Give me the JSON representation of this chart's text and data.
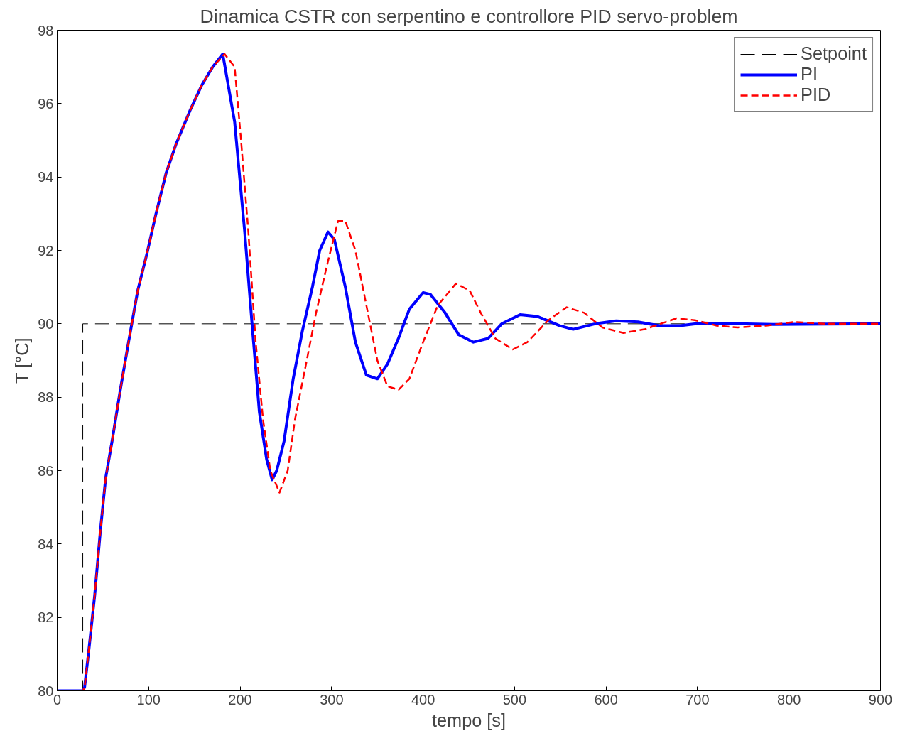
{
  "chart_data": {
    "type": "line",
    "title": "Dinamica CSTR con serpentino e controllore PID servo-problem",
    "xlabel": "tempo [s]",
    "ylabel": "T [°C]",
    "xlim": [
      0,
      900
    ],
    "ylim": [
      80,
      98
    ],
    "xticks": [
      0,
      100,
      200,
      300,
      400,
      500,
      600,
      700,
      800,
      900
    ],
    "yticks": [
      80,
      82,
      84,
      86,
      88,
      90,
      92,
      94,
      96,
      98
    ],
    "grid": false,
    "legend": "top right",
    "marker": "none",
    "series": [
      {
        "name": "Setpoint",
        "color": "#000000",
        "line_style": "dashed",
        "x": [
          0,
          28,
          28,
          900
        ],
        "values": [
          80,
          80,
          90,
          90
        ]
      },
      {
        "name": "PI",
        "color": "#0000ff",
        "line_style": "solid",
        "x": [
          0,
          28,
          30,
          35,
          41,
          47,
          53,
          60,
          69,
          78,
          88,
          98,
          108,
          119,
          130,
          145,
          158,
          170,
          181,
          194,
          205,
          213,
          221,
          229,
          235,
          240,
          248,
          258,
          268,
          279,
          287,
          296,
          303,
          315,
          326,
          338,
          350,
          361,
          373,
          385,
          400,
          408,
          424,
          439,
          455,
          471,
          486,
          506,
          525,
          549,
          564,
          588,
          611,
          635,
          658,
          681,
          705,
          744,
          783,
          900
        ],
        "values": [
          80,
          80,
          80.1,
          81.2,
          82.6,
          84.3,
          85.8,
          86.8,
          88.2,
          89.5,
          90.9,
          91.9,
          93.0,
          94.1,
          94.9,
          95.8,
          96.5,
          97.0,
          97.35,
          95.5,
          92.5,
          90.0,
          87.6,
          86.3,
          85.75,
          86.0,
          86.8,
          88.5,
          89.8,
          91.0,
          92.0,
          92.5,
          92.3,
          91.0,
          89.5,
          88.6,
          88.5,
          88.9,
          89.6,
          90.4,
          90.85,
          90.8,
          90.3,
          89.7,
          89.5,
          89.6,
          90.0,
          90.25,
          90.2,
          89.95,
          89.85,
          90.0,
          90.08,
          90.05,
          89.95,
          89.95,
          90.02,
          90.0,
          89.98,
          90.0
        ]
      },
      {
        "name": "PID",
        "color": "#ff0000",
        "line_style": "dashed",
        "x": [
          0,
          28,
          30,
          35,
          41,
          47,
          53,
          60,
          69,
          78,
          88,
          98,
          108,
          119,
          130,
          145,
          158,
          170,
          183,
          194,
          201,
          209,
          217,
          225,
          233,
          243,
          252,
          260,
          272,
          283,
          295,
          307,
          315,
          326,
          338,
          350,
          361,
          373,
          385,
          400,
          416,
          436,
          451,
          463,
          479,
          498,
          514,
          537,
          557,
          576,
          596,
          619,
          642,
          677,
          697,
          721,
          744,
          775,
          806,
          838,
          900
        ],
        "values": [
          80,
          80,
          80.1,
          81.2,
          82.6,
          84.3,
          85.8,
          86.8,
          88.2,
          89.5,
          90.9,
          91.9,
          93.0,
          94.1,
          94.9,
          95.8,
          96.5,
          97.0,
          97.35,
          97.0,
          95.0,
          92.5,
          89.5,
          87.4,
          86.0,
          85.4,
          86.0,
          87.4,
          88.9,
          90.3,
          91.6,
          92.8,
          92.8,
          92.0,
          90.5,
          89.0,
          88.3,
          88.2,
          88.5,
          89.5,
          90.5,
          91.1,
          90.9,
          90.3,
          89.6,
          89.3,
          89.5,
          90.1,
          90.45,
          90.3,
          89.9,
          89.75,
          89.85,
          90.15,
          90.1,
          89.95,
          89.9,
          89.95,
          90.05,
          90.0,
          90.0
        ]
      }
    ]
  }
}
